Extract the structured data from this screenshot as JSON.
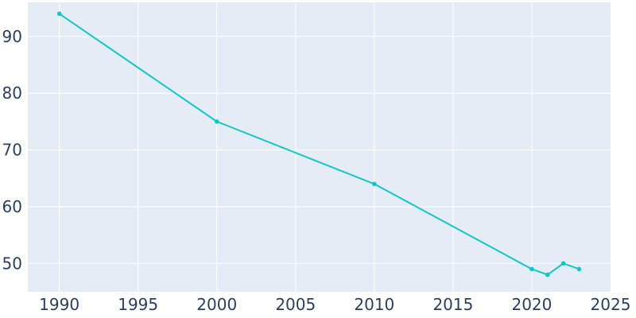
{
  "chart_data": {
    "type": "line",
    "x": [
      1990,
      2000,
      2010,
      2020,
      2021,
      2022,
      2023
    ],
    "series": [
      {
        "values": [
          94,
          75,
          64,
          49,
          48,
          50,
          49
        ]
      }
    ],
    "xlim": [
      1988,
      2025
    ],
    "ylim": [
      45,
      96
    ],
    "xticks": [
      1990,
      1995,
      2000,
      2005,
      2010,
      2015,
      2020,
      2025
    ],
    "yticks": [
      50,
      60,
      70,
      80,
      90
    ],
    "grid": true,
    "legend": "none",
    "colors": {
      "line": "#0cc9c9",
      "plot_background": "#e5ecf6",
      "grid": "#ffffff",
      "tick_text": "#2a3f5f"
    }
  }
}
